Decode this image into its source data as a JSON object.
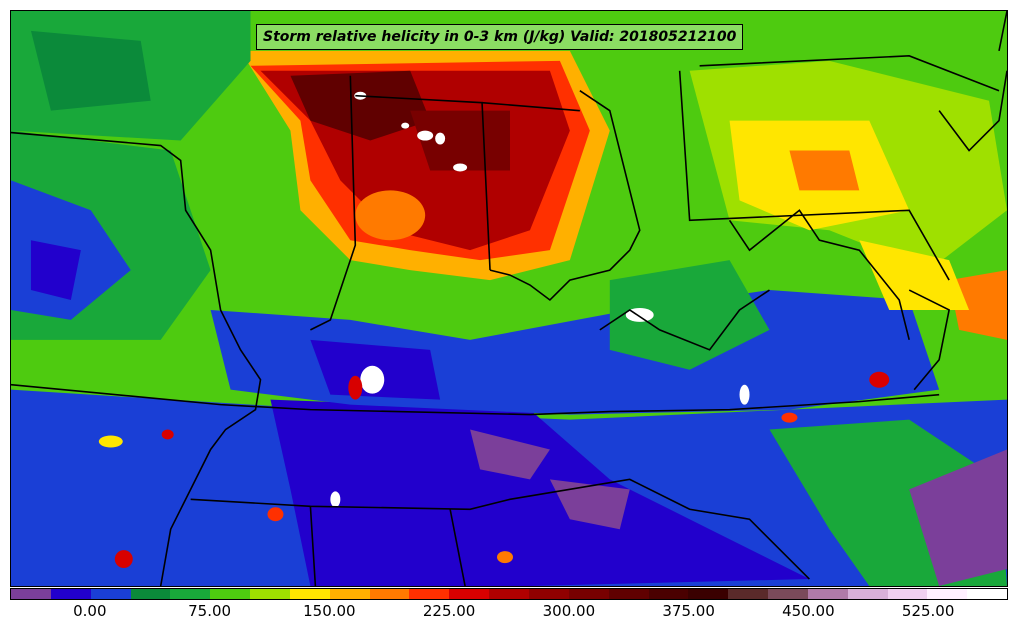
{
  "title": "Storm relative helicity in 0-3 km (J/kg) Valid: 201805212100",
  "colorbar": {
    "colors": [
      "#7b3f9a",
      "#2200cc",
      "#1a3fd6",
      "#0b8a3a",
      "#19a83a",
      "#4ecb10",
      "#9fe000",
      "#ffe600",
      "#ffb000",
      "#ff7a00",
      "#ff3000",
      "#d80000",
      "#b00000",
      "#900000",
      "#780000",
      "#600000",
      "#4a0000",
      "#3a0000",
      "#5a2a2a",
      "#7a4a5a",
      "#b07aa8",
      "#d8b0d8",
      "#f0d0f0",
      "#fff0ff",
      "#ffffff"
    ],
    "tick_labels": [
      {
        "label": "0.00",
        "value": 0
      },
      {
        "label": "75.00",
        "value": 75
      },
      {
        "label": "150.00",
        "value": 150
      },
      {
        "label": "225.00",
        "value": 225
      },
      {
        "label": "300.00",
        "value": 300
      },
      {
        "label": "375.00",
        "value": 375
      },
      {
        "label": "450.00",
        "value": 450
      },
      {
        "label": "525.00",
        "value": 525
      }
    ],
    "range": [
      -50,
      575
    ]
  }
}
